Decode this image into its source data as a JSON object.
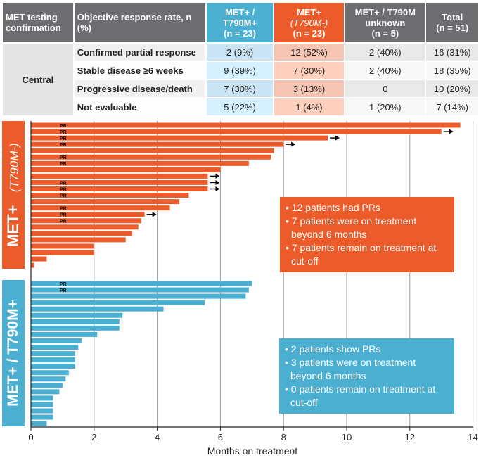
{
  "table": {
    "headers": {
      "testing": "MET testing confirmation",
      "orr": "Objective response rate, n (%)",
      "col_a_l1": "MET+ /",
      "col_a_l2": "T790M+",
      "col_a_n": "(n = 23)",
      "col_b_l1": "MET+",
      "col_b_l2": "(T790M-)",
      "col_b_n": "(n = 23)",
      "col_c_l1": "MET+ / T790M",
      "col_c_l2": "unknown",
      "col_c_n": "(n = 5)",
      "col_d_l1": "Total",
      "col_d_n": "(n = 51)"
    },
    "group": "Central",
    "rows": [
      {
        "label": "Confirmed partial response",
        "a": "2 (9%)",
        "b": "12 (52%)",
        "c": "2 (40%)",
        "d": "16 (31%)"
      },
      {
        "label": "Stable disease ≥6 weeks",
        "a": "9 (39%)",
        "b": "7 (30%)",
        "c": "2 (40%)",
        "d": "18 (35%)"
      },
      {
        "label": "Progressive disease/death",
        "a": "7 (30%)",
        "b": "3 (13%)",
        "c": "0",
        "d": "10 (20%)"
      },
      {
        "label": "Not evaluable",
        "a": "5 (22%)",
        "b": "1 (4%)",
        "c": "1 (20%)",
        "d": "7 (14%)"
      }
    ]
  },
  "side_labels": {
    "top_main": "MET+",
    "top_sub": "(T790M-)",
    "bottom": "MET+ / T790M+"
  },
  "callouts": {
    "orange": [
      "12 patients had PRs",
      "7 patients were on treatment beyond 6 months",
      "7 patients remain on treatment at cut-off"
    ],
    "blue": [
      "2 patients show PRs",
      "3 patients were on treatment beyond 6 months",
      "0 patients remain on treatment at cut-off"
    ]
  },
  "colors": {
    "orange": "#ec5b2a",
    "blue": "#4bafd2",
    "gray": "#6d6e71"
  },
  "chart_data": {
    "type": "bar",
    "orientation": "horizontal",
    "xlabel": "Months on treatment",
    "xlim": [
      0,
      14
    ],
    "xticks": [
      0,
      2,
      4,
      6,
      8,
      10,
      12,
      14
    ],
    "grid": true,
    "pr_marker": "PR",
    "series": [
      {
        "name": "MET+ (T790M-)",
        "values": [
          13.6,
          13.0,
          9.4,
          8.0,
          7.7,
          7.6,
          6.9,
          6.0,
          5.6,
          5.6,
          5.6,
          5.0,
          4.7,
          4.4,
          3.6,
          3.5,
          3.4,
          3.2,
          3.0,
          2.0,
          2.0,
          0.5,
          0.1
        ],
        "pr": [
          true,
          true,
          true,
          true,
          false,
          true,
          true,
          false,
          false,
          true,
          true,
          true,
          false,
          true,
          true,
          true,
          false,
          false,
          false,
          false,
          false,
          false,
          false
        ],
        "ongoing": [
          false,
          true,
          true,
          true,
          false,
          false,
          false,
          false,
          true,
          true,
          true,
          false,
          false,
          false,
          true,
          false,
          false,
          false,
          false,
          false,
          false,
          false,
          false
        ]
      },
      {
        "name": "MET+ / T790M+",
        "values": [
          7.0,
          6.9,
          6.8,
          5.5,
          4.2,
          2.9,
          2.8,
          2.8,
          2.1,
          1.6,
          1.5,
          1.4,
          1.4,
          1.4,
          1.2,
          1.1,
          1.0,
          0.9,
          0.7,
          0.7,
          0.7,
          0.7,
          0.5
        ],
        "pr": [
          true,
          true,
          false,
          false,
          false,
          false,
          false,
          false,
          false,
          false,
          false,
          false,
          false,
          false,
          false,
          false,
          false,
          false,
          false,
          false,
          false,
          false,
          false
        ],
        "ongoing": [
          false,
          false,
          false,
          false,
          false,
          false,
          false,
          false,
          false,
          false,
          false,
          false,
          false,
          false,
          false,
          false,
          false,
          false,
          false,
          false,
          false,
          false,
          false
        ]
      }
    ]
  }
}
